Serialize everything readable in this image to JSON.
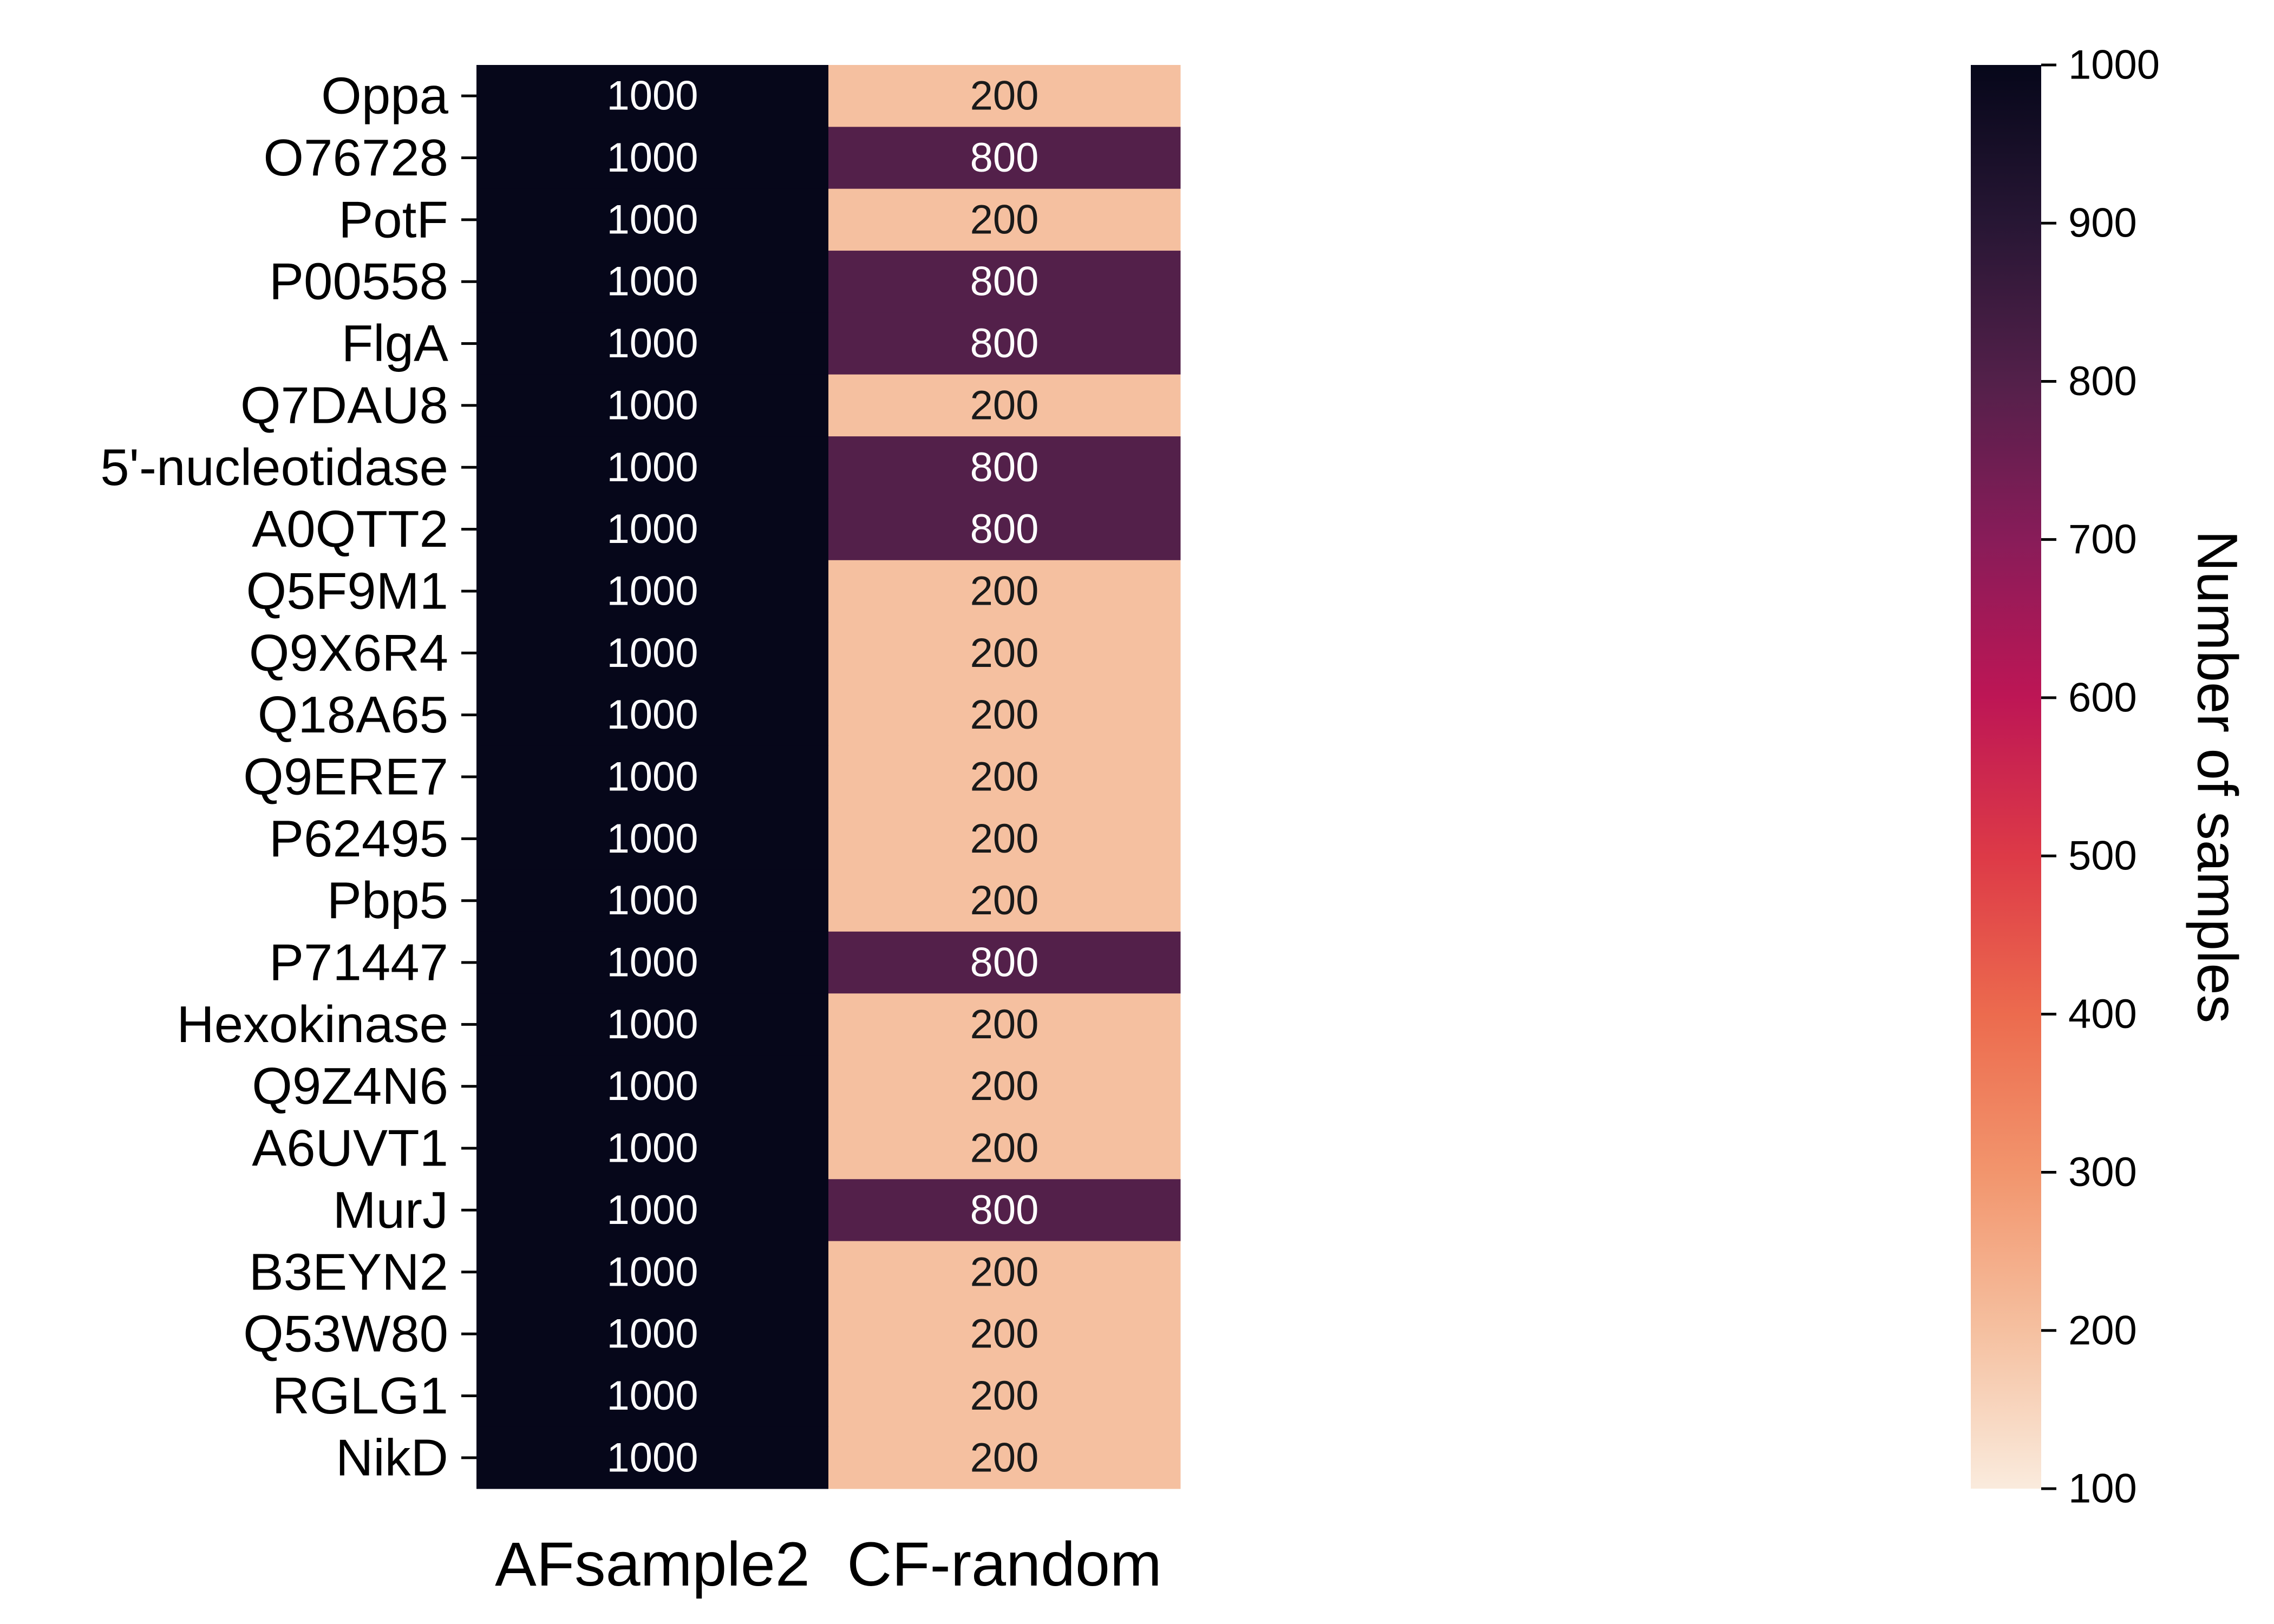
{
  "chart_data": {
    "type": "heatmap",
    "rows": [
      "Oppa",
      "O76728",
      "PotF",
      "P00558",
      "FlgA",
      "Q7DAU8",
      "5'-nucleotidase",
      "A0QTT2",
      "Q5F9M1",
      "Q9X6R4",
      "Q18A65",
      "Q9ERE7",
      "P62495",
      "Pbp5",
      "P71447",
      "Hexokinase",
      "Q9Z4N6",
      "A6UVT1",
      "MurJ",
      "B3EYN2",
      "Q53W80",
      "RGLG1",
      "NikD"
    ],
    "columns": [
      "AFsample2",
      "CF-random"
    ],
    "values": [
      [
        1000,
        200
      ],
      [
        1000,
        800
      ],
      [
        1000,
        200
      ],
      [
        1000,
        800
      ],
      [
        1000,
        800
      ],
      [
        1000,
        200
      ],
      [
        1000,
        800
      ],
      [
        1000,
        800
      ],
      [
        1000,
        200
      ],
      [
        1000,
        200
      ],
      [
        1000,
        200
      ],
      [
        1000,
        200
      ],
      [
        1000,
        200
      ],
      [
        1000,
        200
      ],
      [
        1000,
        800
      ],
      [
        1000,
        200
      ],
      [
        1000,
        200
      ],
      [
        1000,
        200
      ],
      [
        1000,
        800
      ],
      [
        1000,
        200
      ],
      [
        1000,
        200
      ],
      [
        1000,
        200
      ],
      [
        1000,
        200
      ]
    ],
    "colorbar": {
      "label": "Number of samples",
      "range": [
        100,
        1000
      ],
      "ticks": [
        100,
        200,
        300,
        400,
        500,
        600,
        700,
        800,
        900,
        1000
      ],
      "colormap": "rocket_r",
      "colors": {
        "1000": "#06071a",
        "800": "#53204a",
        "200": "#f5c0a0",
        "100": "#faebdd"
      }
    },
    "annotations": true
  }
}
